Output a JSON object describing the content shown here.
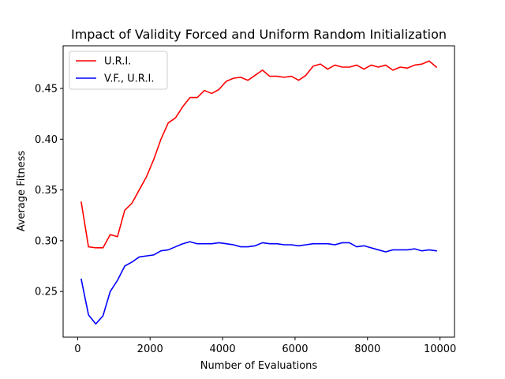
{
  "chart_data": {
    "type": "line",
    "title": "Impact of Validity Forced and Uniform Random Initialization",
    "xlabel": "Number of Evaluations",
    "ylabel": "Average Fitness",
    "xlim": [
      -400,
      10400
    ],
    "ylim": [
      0.205,
      0.492
    ],
    "xticks": [
      0,
      2000,
      4000,
      6000,
      8000,
      10000
    ],
    "xtick_labels": [
      "0",
      "2000",
      "4000",
      "6000",
      "8000",
      "10000"
    ],
    "yticks": [
      0.25,
      0.3,
      0.35,
      0.4,
      0.45
    ],
    "ytick_labels": [
      "0.25",
      "0.30",
      "0.35",
      "0.40",
      "0.45"
    ],
    "grid": false,
    "legend_position": "top-left",
    "x": [
      100,
      300,
      500,
      700,
      900,
      1100,
      1300,
      1500,
      1700,
      1900,
      2100,
      2300,
      2500,
      2700,
      2900,
      3100,
      3300,
      3500,
      3700,
      3900,
      4100,
      4300,
      4500,
      4700,
      4900,
      5100,
      5300,
      5500,
      5700,
      5900,
      6100,
      6300,
      6500,
      6700,
      6900,
      7100,
      7300,
      7500,
      7700,
      7900,
      8100,
      8300,
      8500,
      8700,
      8900,
      9100,
      9300,
      9500,
      9700,
      9900
    ],
    "series": [
      {
        "name": "U.R.I.",
        "color": "#ff0000",
        "values": [
          0.338,
          0.294,
          0.293,
          0.293,
          0.306,
          0.304,
          0.33,
          0.337,
          0.35,
          0.363,
          0.38,
          0.4,
          0.416,
          0.421,
          0.432,
          0.441,
          0.441,
          0.448,
          0.445,
          0.449,
          0.457,
          0.46,
          0.461,
          0.458,
          0.463,
          0.468,
          0.462,
          0.462,
          0.461,
          0.462,
          0.458,
          0.463,
          0.472,
          0.474,
          0.469,
          0.473,
          0.471,
          0.471,
          0.473,
          0.469,
          0.473,
          0.471,
          0.473,
          0.468,
          0.471,
          0.47,
          0.473,
          0.474,
          0.477,
          0.471
        ]
      },
      {
        "name": "V.F., U.R.I.",
        "color": "#0000ff",
        "values": [
          0.262,
          0.227,
          0.218,
          0.226,
          0.25,
          0.261,
          0.275,
          0.279,
          0.284,
          0.285,
          0.286,
          0.29,
          0.291,
          0.294,
          0.297,
          0.299,
          0.297,
          0.297,
          0.297,
          0.298,
          0.297,
          0.296,
          0.294,
          0.294,
          0.295,
          0.298,
          0.297,
          0.297,
          0.296,
          0.296,
          0.295,
          0.296,
          0.297,
          0.297,
          0.297,
          0.296,
          0.298,
          0.298,
          0.294,
          0.295,
          0.293,
          0.291,
          0.289,
          0.291,
          0.291,
          0.291,
          0.292,
          0.29,
          0.291,
          0.29
        ]
      }
    ]
  }
}
